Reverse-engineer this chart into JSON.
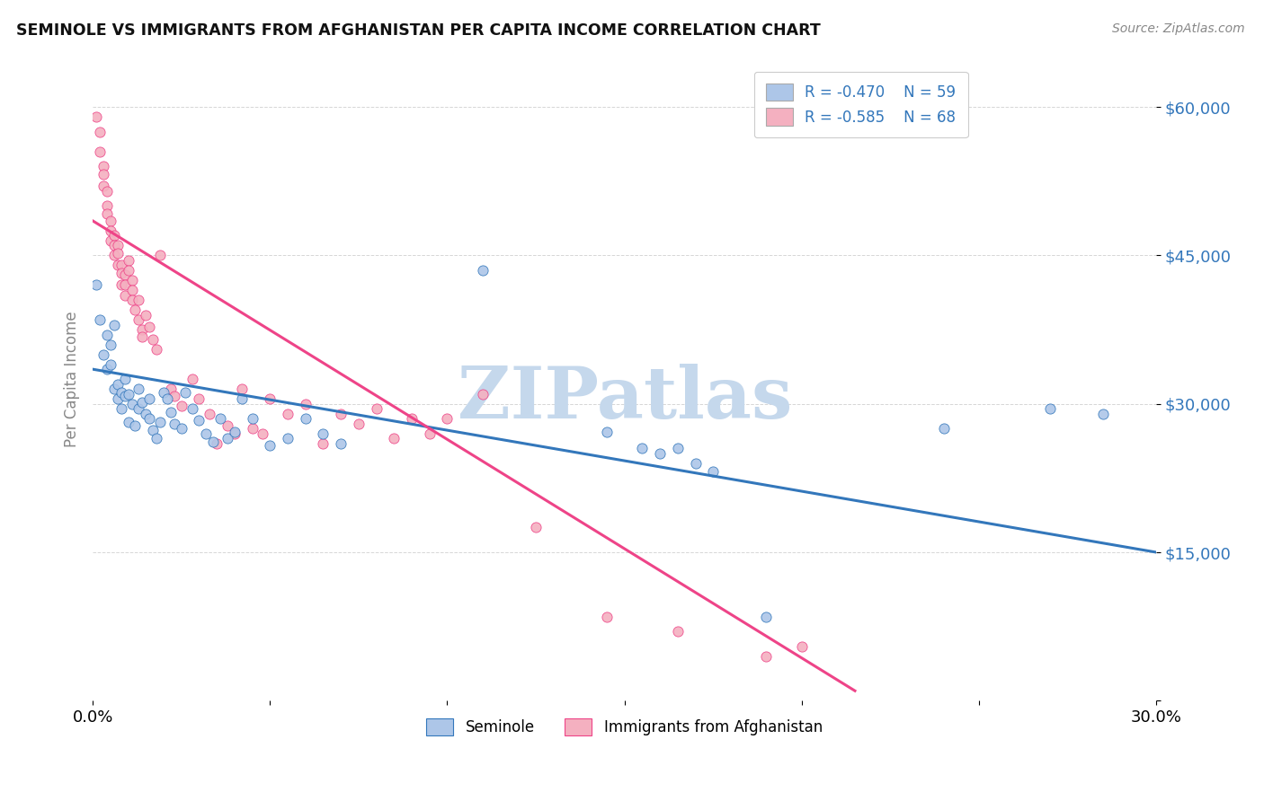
{
  "title": "SEMINOLE VS IMMIGRANTS FROM AFGHANISTAN PER CAPITA INCOME CORRELATION CHART",
  "source": "Source: ZipAtlas.com",
  "ylabel": "Per Capita Income",
  "yticks": [
    0,
    15000,
    30000,
    45000,
    60000
  ],
  "ytick_labels": [
    "",
    "$15,000",
    "$30,000",
    "$45,000",
    "$60,000"
  ],
  "xlim": [
    0.0,
    0.3
  ],
  "ylim": [
    0,
    65000
  ],
  "legend_r_blue": "-0.470",
  "legend_n_blue": "59",
  "legend_r_pink": "-0.585",
  "legend_n_pink": "68",
  "blue_scatter_color": "#adc6e8",
  "pink_scatter_color": "#f4b0c0",
  "blue_line_color": "#3377bb",
  "pink_line_color": "#ee4488",
  "watermark": "ZIPatlas",
  "watermark_color": "#c5d8ec",
  "legend_label_blue": "Seminole",
  "legend_label_pink": "Immigrants from Afghanistan",
  "blue_dots": [
    [
      0.001,
      42000
    ],
    [
      0.002,
      38500
    ],
    [
      0.003,
      35000
    ],
    [
      0.004,
      37000
    ],
    [
      0.004,
      33500
    ],
    [
      0.005,
      36000
    ],
    [
      0.005,
      34000
    ],
    [
      0.006,
      31500
    ],
    [
      0.006,
      38000
    ],
    [
      0.007,
      32000
    ],
    [
      0.007,
      30500
    ],
    [
      0.008,
      31200
    ],
    [
      0.008,
      29500
    ],
    [
      0.009,
      30800
    ],
    [
      0.009,
      32500
    ],
    [
      0.01,
      31000
    ],
    [
      0.01,
      28200
    ],
    [
      0.011,
      30000
    ],
    [
      0.012,
      27800
    ],
    [
      0.013,
      29500
    ],
    [
      0.013,
      31500
    ],
    [
      0.014,
      30200
    ],
    [
      0.015,
      29000
    ],
    [
      0.016,
      30500
    ],
    [
      0.016,
      28500
    ],
    [
      0.017,
      27300
    ],
    [
      0.018,
      26500
    ],
    [
      0.019,
      28200
    ],
    [
      0.02,
      31200
    ],
    [
      0.021,
      30500
    ],
    [
      0.022,
      29200
    ],
    [
      0.023,
      28000
    ],
    [
      0.025,
      27500
    ],
    [
      0.026,
      31200
    ],
    [
      0.028,
      29500
    ],
    [
      0.03,
      28300
    ],
    [
      0.032,
      27000
    ],
    [
      0.034,
      26200
    ],
    [
      0.036,
      28500
    ],
    [
      0.038,
      26500
    ],
    [
      0.04,
      27200
    ],
    [
      0.042,
      30500
    ],
    [
      0.045,
      28500
    ],
    [
      0.05,
      25800
    ],
    [
      0.055,
      26500
    ],
    [
      0.06,
      28500
    ],
    [
      0.065,
      27000
    ],
    [
      0.07,
      26000
    ],
    [
      0.11,
      43500
    ],
    [
      0.145,
      27200
    ],
    [
      0.155,
      25500
    ],
    [
      0.16,
      25000
    ],
    [
      0.165,
      25500
    ],
    [
      0.17,
      24000
    ],
    [
      0.175,
      23200
    ],
    [
      0.19,
      8500
    ],
    [
      0.24,
      27500
    ],
    [
      0.27,
      29500
    ],
    [
      0.285,
      29000
    ]
  ],
  "pink_dots": [
    [
      0.001,
      59000
    ],
    [
      0.002,
      57500
    ],
    [
      0.002,
      55500
    ],
    [
      0.003,
      54000
    ],
    [
      0.003,
      53200
    ],
    [
      0.003,
      52000
    ],
    [
      0.004,
      51500
    ],
    [
      0.004,
      50000
    ],
    [
      0.004,
      49200
    ],
    [
      0.005,
      48500
    ],
    [
      0.005,
      47500
    ],
    [
      0.005,
      46500
    ],
    [
      0.006,
      47000
    ],
    [
      0.006,
      46000
    ],
    [
      0.006,
      45000
    ],
    [
      0.007,
      46000
    ],
    [
      0.007,
      45200
    ],
    [
      0.007,
      44000
    ],
    [
      0.008,
      44000
    ],
    [
      0.008,
      43200
    ],
    [
      0.008,
      42000
    ],
    [
      0.009,
      43000
    ],
    [
      0.009,
      42000
    ],
    [
      0.009,
      41000
    ],
    [
      0.01,
      44500
    ],
    [
      0.01,
      43500
    ],
    [
      0.011,
      42500
    ],
    [
      0.011,
      41500
    ],
    [
      0.011,
      40500
    ],
    [
      0.012,
      39500
    ],
    [
      0.013,
      40500
    ],
    [
      0.013,
      38500
    ],
    [
      0.014,
      37500
    ],
    [
      0.014,
      36800
    ],
    [
      0.015,
      39000
    ],
    [
      0.016,
      37800
    ],
    [
      0.017,
      36500
    ],
    [
      0.018,
      35500
    ],
    [
      0.019,
      45000
    ],
    [
      0.022,
      31500
    ],
    [
      0.023,
      30800
    ],
    [
      0.025,
      29800
    ],
    [
      0.028,
      32500
    ],
    [
      0.03,
      30500
    ],
    [
      0.033,
      29000
    ],
    [
      0.035,
      26000
    ],
    [
      0.038,
      27800
    ],
    [
      0.04,
      27000
    ],
    [
      0.042,
      31500
    ],
    [
      0.045,
      27500
    ],
    [
      0.048,
      27000
    ],
    [
      0.05,
      30500
    ],
    [
      0.055,
      29000
    ],
    [
      0.06,
      30000
    ],
    [
      0.065,
      26000
    ],
    [
      0.07,
      29000
    ],
    [
      0.075,
      28000
    ],
    [
      0.08,
      29500
    ],
    [
      0.085,
      26500
    ],
    [
      0.09,
      28500
    ],
    [
      0.095,
      27000
    ],
    [
      0.1,
      28500
    ],
    [
      0.11,
      31000
    ],
    [
      0.125,
      17500
    ],
    [
      0.145,
      8500
    ],
    [
      0.165,
      7000
    ],
    [
      0.19,
      4500
    ],
    [
      0.2,
      5500
    ]
  ],
  "blue_line_x": [
    0.0,
    0.3
  ],
  "blue_line_y": [
    33500,
    15000
  ],
  "pink_line_x": [
    0.0,
    0.215
  ],
  "pink_line_y": [
    48500,
    1000
  ],
  "background_color": "#ffffff",
  "grid_color": "#cccccc",
  "grid_style": "--"
}
